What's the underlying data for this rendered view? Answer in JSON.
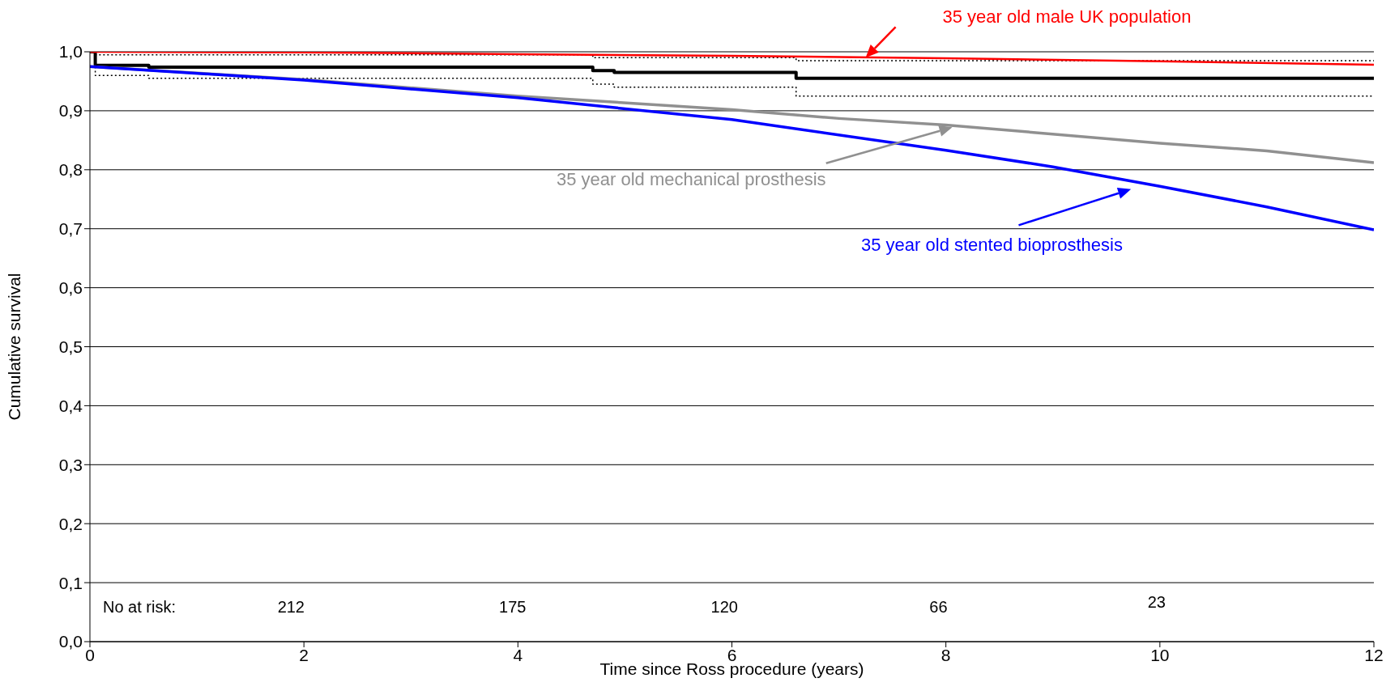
{
  "chart_data": {
    "type": "line",
    "xlabel": "Time since Ross procedure (years)",
    "ylabel": "Cumulative survival",
    "xlim": [
      0,
      12
    ],
    "xticks": [
      0,
      2,
      4,
      6,
      8,
      10,
      12
    ],
    "ylim": [
      0,
      1
    ],
    "yticks": [
      {
        "value": 0,
        "label": "0,0"
      },
      {
        "value": 0.1,
        "label": "0,1"
      },
      {
        "value": 0.2,
        "label": "0,2"
      },
      {
        "value": 0.3,
        "label": "0,3"
      },
      {
        "value": 0.4,
        "label": "0,4"
      },
      {
        "value": 0.5,
        "label": "0,5"
      },
      {
        "value": 0.6,
        "label": "0,6"
      },
      {
        "value": 0.7,
        "label": "0,7"
      },
      {
        "value": 0.8,
        "label": "0,8"
      },
      {
        "value": 0.9,
        "label": "0,9"
      },
      {
        "value": 1,
        "label": "1,0"
      }
    ],
    "grid": "y",
    "legend": false,
    "series": [
      {
        "type": "step",
        "color": "#000000",
        "line_style": "dotted",
        "x": [
          0,
          0.05,
          0.55,
          4.7,
          4.9,
          6.6,
          12
        ],
        "values": [
          1.0,
          0.995,
          0.995,
          0.99,
          0.99,
          0.985,
          0.985
        ]
      },
      {
        "type": "step",
        "color": "#000000",
        "line_style": "dotted",
        "x": [
          0,
          0.05,
          0.55,
          4.7,
          4.9,
          6.6,
          12
        ],
        "values": [
          1.0,
          0.96,
          0.955,
          0.945,
          0.94,
          0.925,
          0.925
        ]
      },
      {
        "type": "step",
        "color": "#000000",
        "x": [
          0,
          0.05,
          0.55,
          4.7,
          4.9,
          6.6,
          12
        ],
        "values": [
          1.0,
          0.977,
          0.974,
          0.968,
          0.965,
          0.955,
          0.955
        ]
      },
      {
        "name": "35 year old male UK population",
        "color": "#ff0000",
        "x": [
          0,
          2,
          4,
          6,
          8,
          10,
          12
        ],
        "values": [
          1.0,
          0.999,
          0.996,
          0.993,
          0.989,
          0.984,
          0.978
        ]
      },
      {
        "name": "35 year old mechanical prosthesis",
        "color": "#909090",
        "x": [
          0,
          2,
          4,
          6,
          7,
          8,
          10,
          11,
          12
        ],
        "values": [
          0.975,
          0.953,
          0.925,
          0.902,
          0.887,
          0.876,
          0.845,
          0.832,
          0.812
        ]
      },
      {
        "name": "35 year old stented bioprosthesis",
        "color": "#0000ff",
        "x": [
          0,
          2,
          4,
          6,
          8,
          9,
          10,
          11,
          12
        ],
        "values": [
          0.975,
          0.952,
          0.922,
          0.885,
          0.833,
          0.805,
          0.772,
          0.737,
          0.698
        ]
      }
    ],
    "annotations": [
      "No at risk:",
      "212",
      "175",
      "120",
      "66",
      "23"
    ]
  }
}
